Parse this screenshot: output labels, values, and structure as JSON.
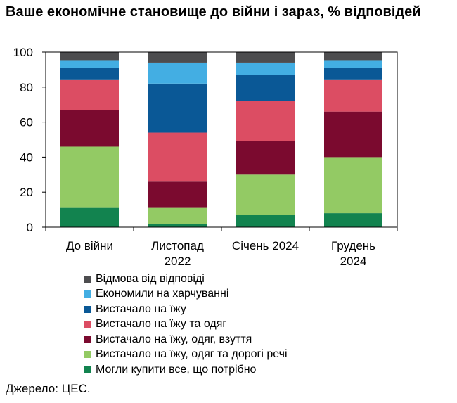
{
  "chart_data": {
    "type": "bar",
    "stacked": true,
    "title": "Ваше економічне становище до війни і зараз, % відповідей",
    "categories": [
      [
        "До війни"
      ],
      [
        "Листопад",
        "2022"
      ],
      [
        "Січень 2024"
      ],
      [
        "Грудень",
        "2024"
      ]
    ],
    "ylim": [
      0,
      100
    ],
    "yticks": [
      "0",
      "20",
      "40",
      "60",
      "80",
      "100"
    ],
    "grid": false,
    "legend_position": "bottom",
    "series": [
      {
        "name": "Могли купити все, що потрібно",
        "color": "#12834F",
        "values": [
          11,
          2,
          7,
          8
        ]
      },
      {
        "name": "Вистачало на їжу, одяг та дорогі речі",
        "color": "#93CA64",
        "values": [
          35,
          9,
          23,
          32
        ]
      },
      {
        "name": "Вистачало на їжу, одяг, взуття",
        "color": "#7B0A2F",
        "values": [
          21,
          15,
          19,
          26
        ]
      },
      {
        "name": "Вистачало на їжу та одяг",
        "color": "#DC4D63",
        "values": [
          17,
          28,
          23,
          18
        ]
      },
      {
        "name": "Вистачало на їжу",
        "color": "#0A5896",
        "values": [
          7,
          28,
          15,
          7
        ]
      },
      {
        "name": "Економили на харчуванні",
        "color": "#43AEE3",
        "values": [
          4,
          12,
          7,
          4
        ]
      },
      {
        "name": "Відмова від відповіді",
        "color": "#4D4D4F",
        "values": [
          5,
          6,
          6,
          5
        ]
      }
    ]
  },
  "source": "Джерело: ЦЕС."
}
